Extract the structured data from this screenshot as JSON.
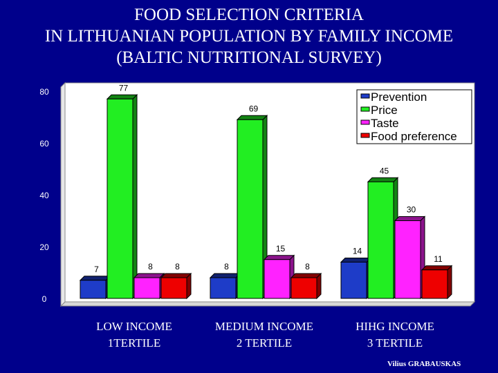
{
  "title": {
    "line1": "FOOD SELECTION CRITERIA",
    "line2": "IN LITHUANIAN POPULATION BY FAMILY INCOME",
    "line3": "(BALTIC NUTRITIONAL SURVEY)"
  },
  "credit": "Vilius GRABAUSKAS",
  "colors": {
    "background": "#00008b",
    "plot_area": "#ffffff",
    "Prevention": "#1e3cc8",
    "Price": "#22ee22",
    "Taste": "#ff22ff",
    "Food preference": "#ee0000"
  },
  "chart_data": {
    "type": "bar",
    "title": "FOOD SELECTION CRITERIA IN LITHUANIAN POPULATION BY FAMILY INCOME (BALTIC NUTRITIONAL SURVEY)",
    "categories": [
      [
        "LOW  INCOME",
        "1TERTILE"
      ],
      [
        "MEDIUM INCOME",
        "2 TERTILE"
      ],
      [
        "HIHG INCOME",
        "3 TERTILE"
      ]
    ],
    "series": [
      {
        "name": "Prevention",
        "values": [
          7,
          8,
          14
        ]
      },
      {
        "name": "Price",
        "values": [
          77,
          69,
          45
        ]
      },
      {
        "name": "Taste",
        "values": [
          8,
          15,
          30
        ]
      },
      {
        "name": "Food preference",
        "values": [
          8,
          8,
          11
        ]
      }
    ],
    "yticks": [
      0,
      20,
      40,
      60,
      80
    ],
    "ylim": [
      0,
      85
    ],
    "xlabel": "",
    "ylabel": "",
    "grid": false,
    "legend": "top-right"
  }
}
